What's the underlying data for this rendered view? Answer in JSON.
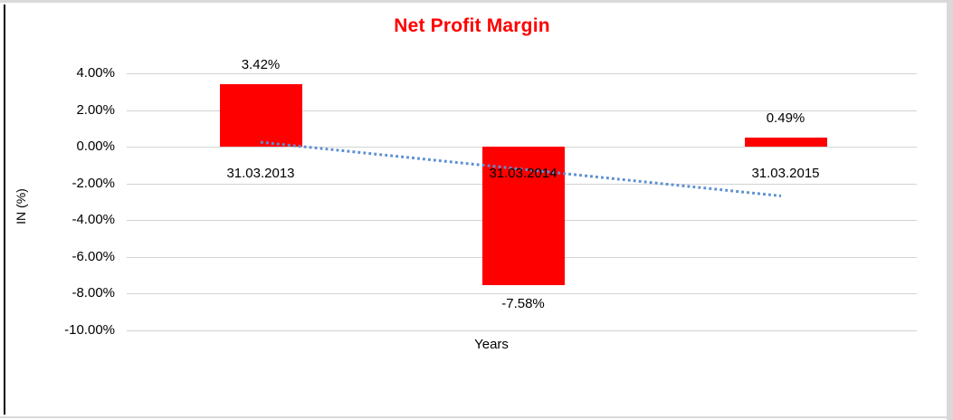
{
  "window": {
    "background": "#ffffff",
    "frame_gray": "#d9d9d9",
    "frame_black": "#000000"
  },
  "chart_data": {
    "type": "bar",
    "title": "Net Profit Margin",
    "title_color": "#ff0000",
    "xlabel": "Years",
    "ylabel": "IN (%)",
    "categories": [
      "31.03.2013",
      "31.03.2014",
      "31.03.2015"
    ],
    "values": [
      3.42,
      -7.58,
      0.49
    ],
    "data_labels": [
      "3.42%",
      "-7.58%",
      "0.49%"
    ],
    "bar_color": "#ff0000",
    "ylim": [
      -10,
      4
    ],
    "ytick_step": 2,
    "yticks": [
      4,
      2,
      0,
      -2,
      -4,
      -6,
      -8,
      -10
    ],
    "ytick_labels": [
      "4.00%",
      "2.00%",
      "0.00%",
      "-2.00%",
      "-4.00%",
      "-6.00%",
      "-8.00%",
      "-10.00%"
    ],
    "grid": true,
    "gridline_color": "#d3d3d3",
    "legend": "none",
    "trendline": {
      "type": "linear",
      "style": "dotted",
      "color": "#5b8fd0",
      "start_value": 0.24,
      "end_value": -2.69
    }
  }
}
